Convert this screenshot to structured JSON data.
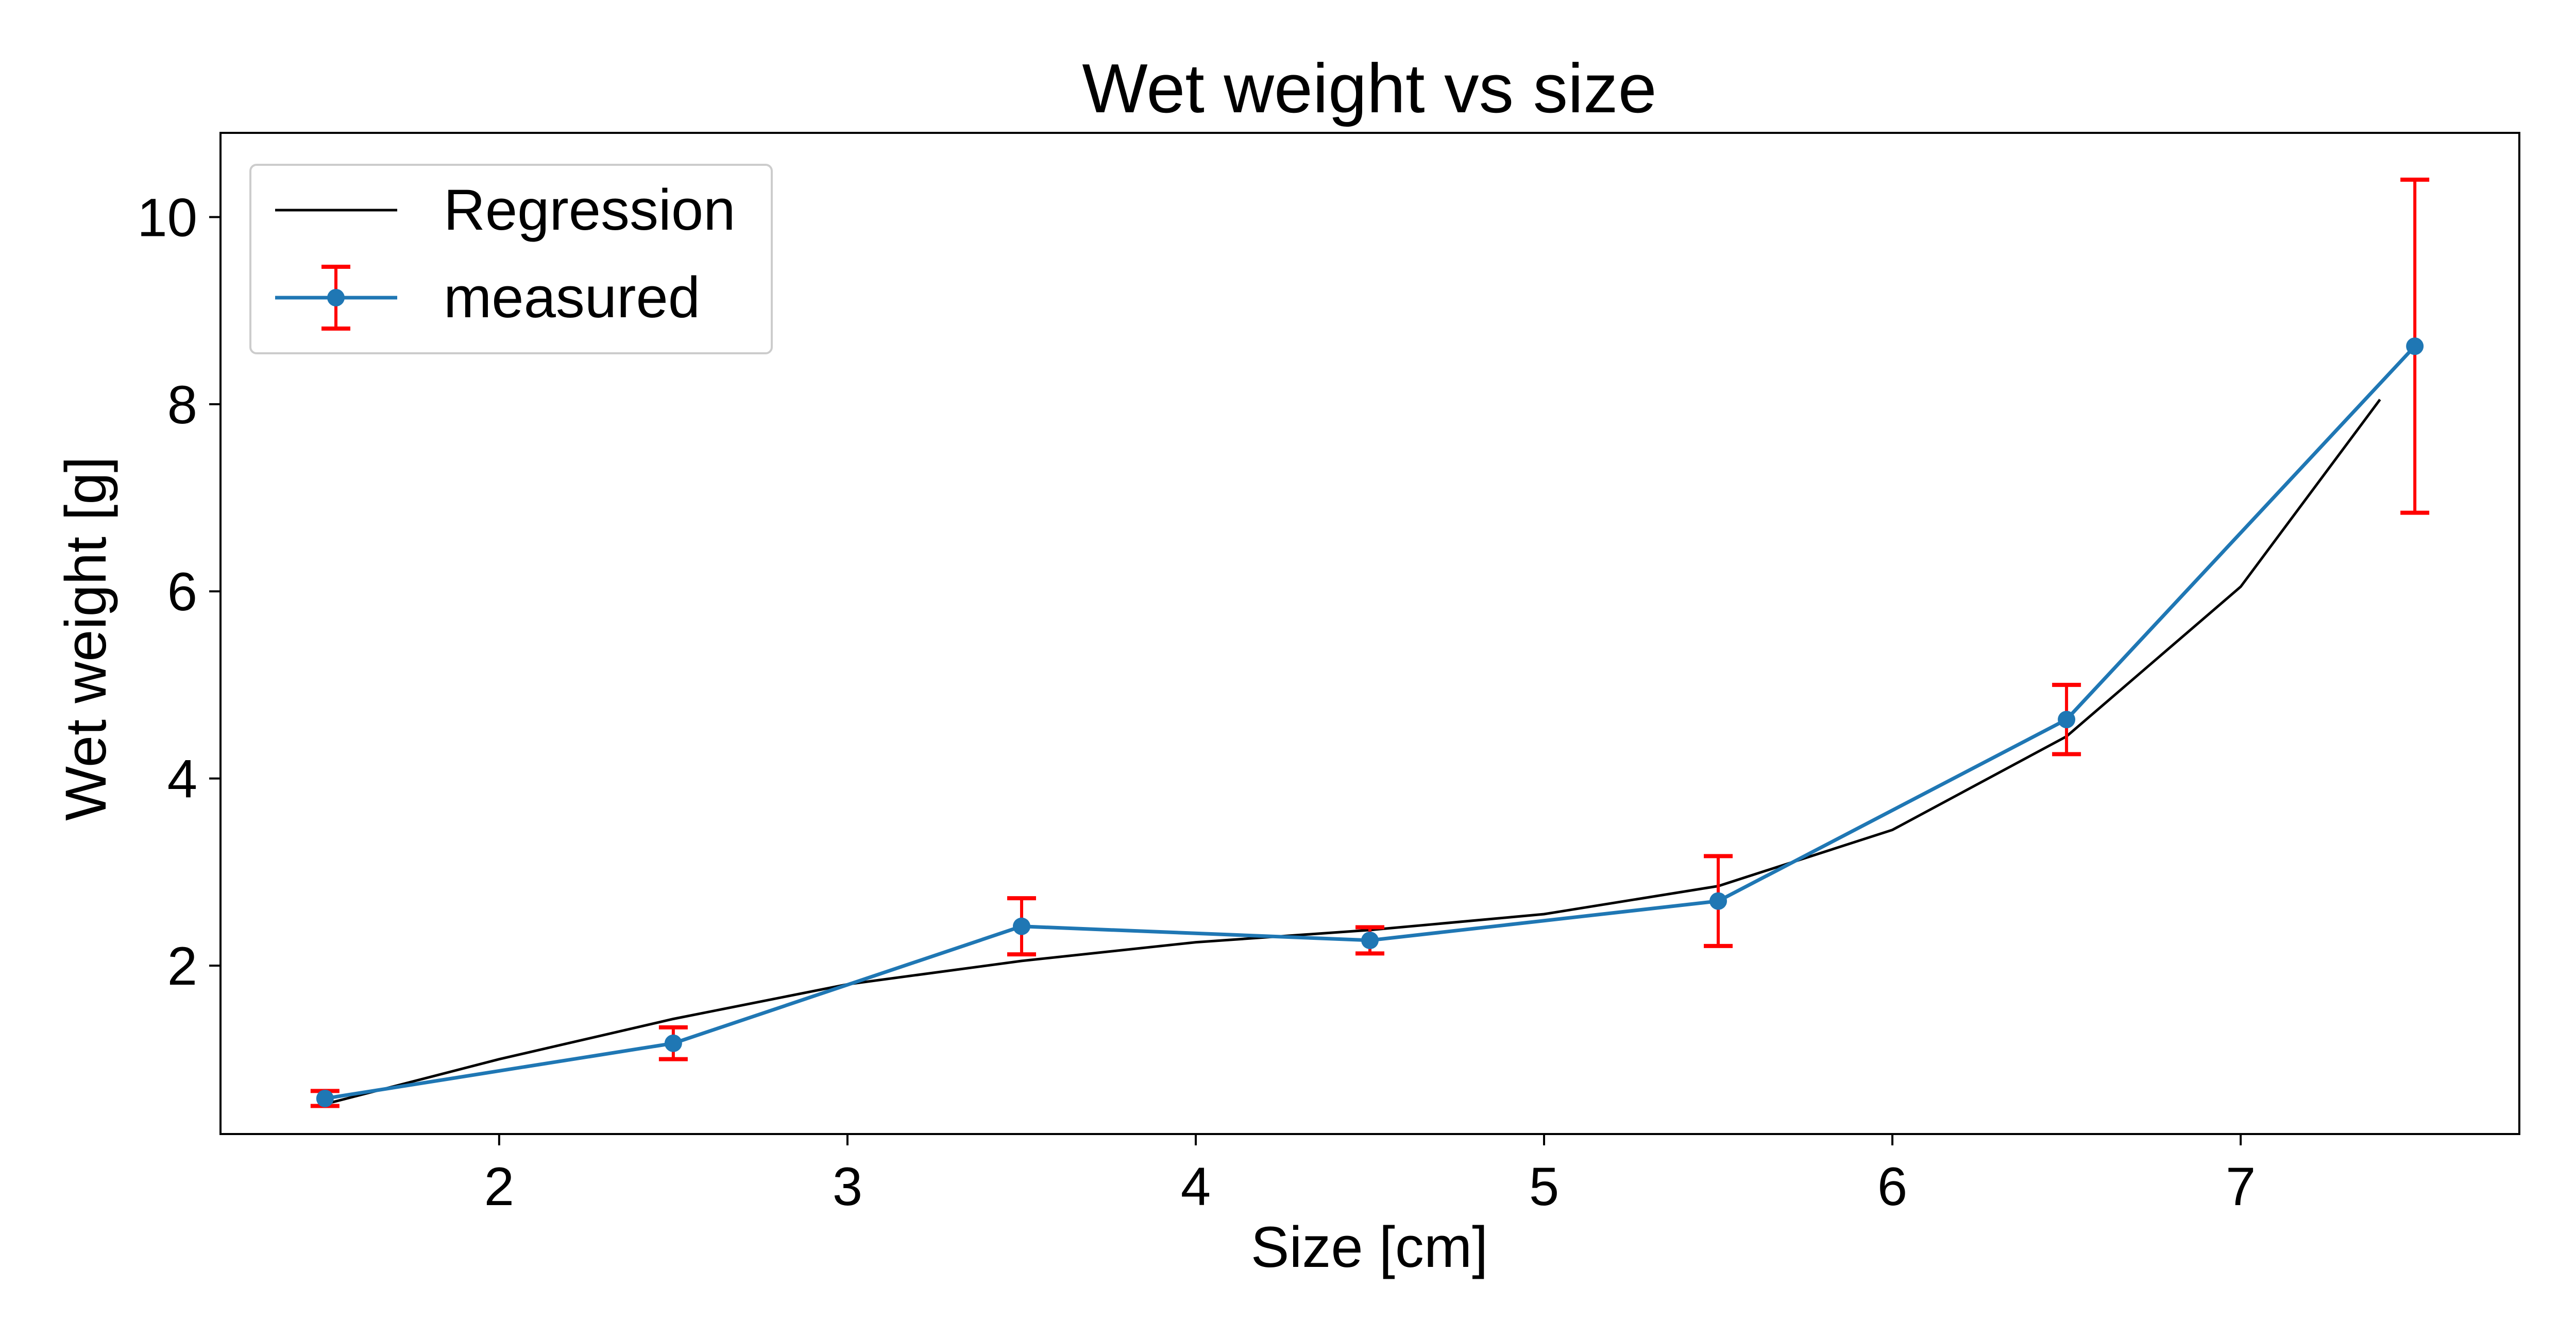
{
  "chart_data": {
    "type": "line",
    "title": "Wet weight vs size",
    "xlabel": "Size [cm]",
    "ylabel": "Wet weight [g]",
    "xlim": [
      1.2,
      7.8
    ],
    "ylim": [
      0.2,
      10.9
    ],
    "xticks": [
      2,
      3,
      4,
      5,
      6,
      7
    ],
    "yticks": [
      2,
      4,
      6,
      8,
      10
    ],
    "grid": false,
    "legend_position": "top-left",
    "series": [
      {
        "name": "Regression",
        "kind": "line",
        "color": "#000000",
        "x": [
          1.5,
          2.0,
          2.5,
          3.0,
          3.5,
          4.0,
          4.5,
          5.0,
          5.5,
          6.0,
          6.5,
          7.0,
          7.4
        ],
        "y": [
          0.52,
          1.0,
          1.43,
          1.8,
          2.05,
          2.25,
          2.38,
          2.55,
          2.85,
          3.45,
          4.45,
          6.05,
          8.05
        ]
      },
      {
        "name": "measured",
        "kind": "errorbar",
        "color": "#1f77b4",
        "error_color": "#ff0000",
        "x": [
          1.5,
          2.5,
          3.5,
          4.5,
          5.5,
          6.5,
          7.5
        ],
        "y": [
          0.58,
          1.17,
          2.42,
          2.27,
          2.69,
          4.63,
          8.62
        ],
        "yerr": [
          0.08,
          0.17,
          0.3,
          0.14,
          0.48,
          0.37,
          1.78
        ]
      }
    ]
  }
}
